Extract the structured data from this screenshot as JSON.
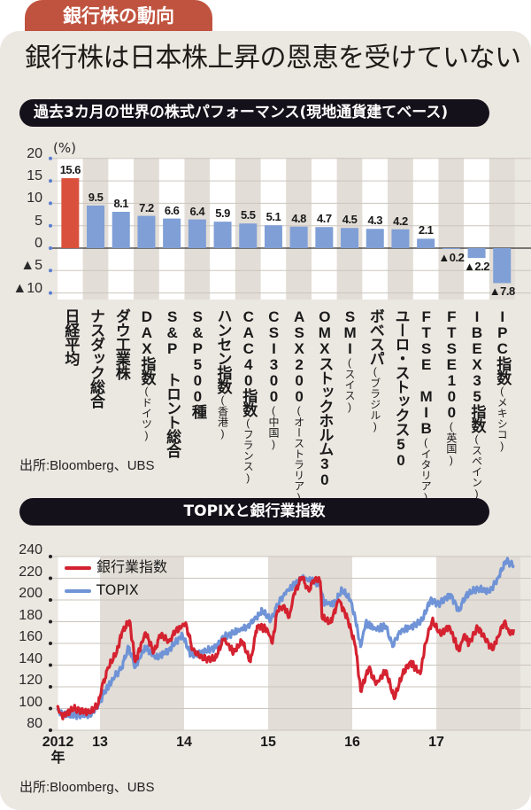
{
  "tab_label": "銀行株の動向",
  "headline": "銀行株は日本株上昇の恩恵を受けていない",
  "colors": {
    "tab": "#c0533f",
    "panel": "#ebe7e1",
    "bar": "#7f9fd6",
    "bar_highlight": "#d9513c",
    "bank_line": "#d42230",
    "topix_line": "#6f93d6"
  },
  "chart_data": [
    {
      "type": "bar",
      "title": "過去3カ月の世界の株式パフォーマンス(現地通貨建てベース)",
      "ylabel": "(%)",
      "ylim": [
        -10,
        20
      ],
      "yticks": [
        {
          "v": 20,
          "label": "20"
        },
        {
          "v": 15,
          "label": "15"
        },
        {
          "v": 10,
          "label": "10"
        },
        {
          "v": 5,
          "label": "5"
        },
        {
          "v": 0,
          "label": "0"
        },
        {
          "v": -5,
          "label": "▲5"
        },
        {
          "v": -10,
          "label": "▲10"
        }
      ],
      "grid": true,
      "categories": [
        {
          "name": "日経平均",
          "sub": ""
        },
        {
          "name": "ナスダック総合",
          "sub": ""
        },
        {
          "name": "ダウ工業株",
          "sub": ""
        },
        {
          "name": "DAX指数",
          "sub": "(ドイツ)"
        },
        {
          "name": "S&P トロント総合",
          "sub": ""
        },
        {
          "name": "S&P500種",
          "sub": ""
        },
        {
          "name": "ハンセン指数",
          "sub": "(香港)"
        },
        {
          "name": "CAC40指数",
          "sub": "(フランス)"
        },
        {
          "name": "CSI300",
          "sub": "(中国)"
        },
        {
          "name": "ASX200",
          "sub": "(オーストラリア)"
        },
        {
          "name": "OMXストックホルム30",
          "sub": ""
        },
        {
          "name": "SMI",
          "sub": "(スイス)"
        },
        {
          "name": "ボベスパ",
          "sub": "(ブラジル)"
        },
        {
          "name": "ユーロ・ストックス50",
          "sub": ""
        },
        {
          "name": "FTSE MIB",
          "sub": "(イタリア)"
        },
        {
          "name": "FTSE100",
          "sub": "(英国)"
        },
        {
          "name": "IBEX35指数",
          "sub": "(スペイン)"
        },
        {
          "name": "IPC指数",
          "sub": "(メキシコ)"
        }
      ],
      "values": [
        15.6,
        9.5,
        8.1,
        7.2,
        6.6,
        6.4,
        5.9,
        5.5,
        5.1,
        4.8,
        4.7,
        4.5,
        4.3,
        4.2,
        2.1,
        -0.2,
        -2.2,
        -7.8
      ],
      "value_labels": [
        "15.6",
        "9.5",
        "8.1",
        "7.2",
        "6.6",
        "6.4",
        "5.9",
        "5.5",
        "5.1",
        "4.8",
        "4.7",
        "4.5",
        "4.3",
        "4.2",
        "2.1",
        "▲0.2",
        "▲2.2",
        "▲7.8"
      ],
      "highlight_index": 0,
      "source": "出所:Bloomberg、UBS"
    },
    {
      "type": "line",
      "title": "TOPIXと銀行業指数",
      "ylim": [
        80,
        240
      ],
      "yticks": [
        240,
        220,
        200,
        180,
        160,
        140,
        120,
        100,
        80
      ],
      "xlim": [
        2012.5,
        2018.0
      ],
      "xticks": [
        {
          "v": 2012.5,
          "label": "2012",
          "sub": "年"
        },
        {
          "v": 2013,
          "label": "13"
        },
        {
          "v": 2014,
          "label": "14"
        },
        {
          "v": 2015,
          "label": "15"
        },
        {
          "v": 2016,
          "label": "16"
        },
        {
          "v": 2017,
          "label": "17"
        }
      ],
      "grid": true,
      "legend_position": "top-left",
      "series": [
        {
          "name": "TOPIX",
          "points": [
            [
              2012.49,
              100
            ],
            [
              2012.55,
              94
            ],
            [
              2012.88,
              94
            ],
            [
              2012.98,
              103
            ],
            [
              2013.06,
              116
            ],
            [
              2013.18,
              130
            ],
            [
              2013.26,
              138
            ],
            [
              2013.34,
              157
            ],
            [
              2013.42,
              138
            ],
            [
              2013.54,
              157
            ],
            [
              2013.66,
              146
            ],
            [
              2013.82,
              154
            ],
            [
              2013.98,
              168
            ],
            [
              2014.08,
              149
            ],
            [
              2014.23,
              152
            ],
            [
              2014.39,
              157
            ],
            [
              2014.47,
              166
            ],
            [
              2014.63,
              171
            ],
            [
              2014.75,
              176
            ],
            [
              2014.83,
              181
            ],
            [
              2014.93,
              190
            ],
            [
              2015.03,
              181
            ],
            [
              2015.11,
              195
            ],
            [
              2015.19,
              206
            ],
            [
              2015.31,
              214
            ],
            [
              2015.4,
              220
            ],
            [
              2015.52,
              218
            ],
            [
              2015.62,
              213
            ],
            [
              2015.66,
              198
            ],
            [
              2015.78,
              196
            ],
            [
              2015.88,
              209
            ],
            [
              2015.98,
              200
            ],
            [
              2016.04,
              181
            ],
            [
              2016.1,
              157
            ],
            [
              2016.16,
              179
            ],
            [
              2016.28,
              173
            ],
            [
              2016.4,
              176
            ],
            [
              2016.48,
              157
            ],
            [
              2016.56,
              171
            ],
            [
              2016.73,
              176
            ],
            [
              2016.83,
              181
            ],
            [
              2016.93,
              200
            ],
            [
              2017.03,
              196
            ],
            [
              2017.17,
              205
            ],
            [
              2017.27,
              190
            ],
            [
              2017.35,
              204
            ],
            [
              2017.49,
              211
            ],
            [
              2017.63,
              207
            ],
            [
              2017.73,
              220
            ],
            [
              2017.83,
              236
            ],
            [
              2017.92,
              232
            ]
          ]
        },
        {
          "name": "銀行業指数",
          "points": [
            [
              2012.49,
              101
            ],
            [
              2012.55,
              93
            ],
            [
              2012.69,
              100
            ],
            [
              2012.88,
              96
            ],
            [
              2012.98,
              104
            ],
            [
              2013.02,
              119
            ],
            [
              2013.1,
              138
            ],
            [
              2013.2,
              152
            ],
            [
              2013.26,
              170
            ],
            [
              2013.35,
              181
            ],
            [
              2013.42,
              143
            ],
            [
              2013.54,
              170
            ],
            [
              2013.64,
              152
            ],
            [
              2013.72,
              168
            ],
            [
              2013.82,
              162
            ],
            [
              2013.9,
              171
            ],
            [
              2014.02,
              179
            ],
            [
              2014.1,
              154
            ],
            [
              2014.23,
              146
            ],
            [
              2014.37,
              146
            ],
            [
              2014.47,
              164
            ],
            [
              2014.59,
              152
            ],
            [
              2014.69,
              162
            ],
            [
              2014.79,
              143
            ],
            [
              2014.87,
              176
            ],
            [
              2014.99,
              173
            ],
            [
              2015.05,
              160
            ],
            [
              2015.11,
              190
            ],
            [
              2015.19,
              195
            ],
            [
              2015.25,
              184
            ],
            [
              2015.31,
              206
            ],
            [
              2015.4,
              221
            ],
            [
              2015.48,
              209
            ],
            [
              2015.56,
              220
            ],
            [
              2015.62,
              217
            ],
            [
              2015.64,
              184
            ],
            [
              2015.74,
              179
            ],
            [
              2015.84,
              200
            ],
            [
              2015.94,
              184
            ],
            [
              2016.04,
              157
            ],
            [
              2016.1,
              116
            ],
            [
              2016.2,
              138
            ],
            [
              2016.28,
              122
            ],
            [
              2016.4,
              135
            ],
            [
              2016.5,
              109
            ],
            [
              2016.6,
              132
            ],
            [
              2016.69,
              143
            ],
            [
              2016.81,
              132
            ],
            [
              2016.87,
              160
            ],
            [
              2016.95,
              181
            ],
            [
              2017.05,
              168
            ],
            [
              2017.15,
              176
            ],
            [
              2017.27,
              153
            ],
            [
              2017.33,
              168
            ],
            [
              2017.39,
              160
            ],
            [
              2017.49,
              175
            ],
            [
              2017.67,
              154
            ],
            [
              2017.73,
              166
            ],
            [
              2017.81,
              180
            ],
            [
              2017.88,
              168
            ],
            [
              2017.92,
              173
            ]
          ]
        }
      ],
      "legend": [
        "銀行業指数",
        "TOPIX"
      ],
      "source": "出所:Bloomberg、UBS"
    }
  ]
}
